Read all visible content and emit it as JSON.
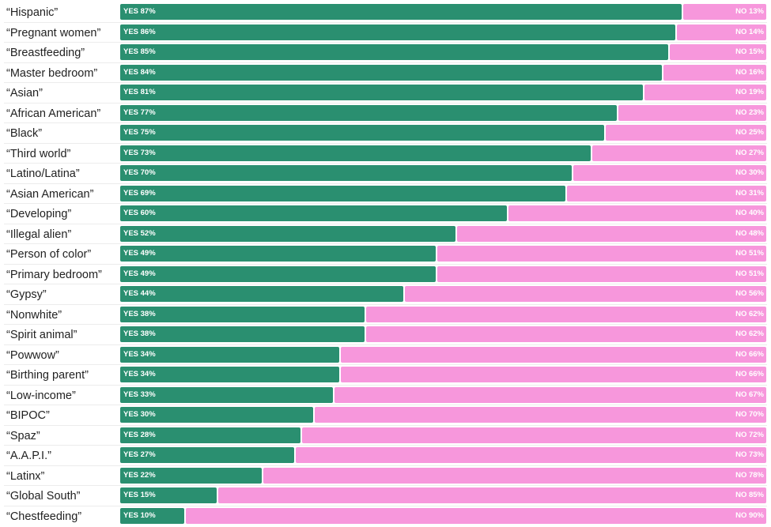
{
  "chart_data": {
    "type": "bar",
    "orientation": "horizontal",
    "stacked": true,
    "title": "",
    "xlabel": "",
    "ylabel": "",
    "xlim": [
      0,
      100
    ],
    "grid": false,
    "legend": "none",
    "yes_prefix": "YES",
    "no_prefix": "NO",
    "colors": {
      "yes": "#2a8f70",
      "no": "#f797dc"
    },
    "categories": [
      "“Hispanic”",
      "“Pregnant women”",
      "“Breastfeeding”",
      "“Master bedroom”",
      "“Asian”",
      "“African American”",
      "“Black”",
      "“Third world”",
      "“Latino/Latina”",
      "“Asian American”",
      "“Developing”",
      "“Illegal alien”",
      "“Person of color”",
      "“Primary bedroom”",
      "“Gypsy”",
      "“Nonwhite”",
      "“Spirit animal”",
      "“Powwow”",
      "“Birthing parent”",
      "“Low-income”",
      "“BIPOC”",
      "“Spaz”",
      "“A.A.P.I.”",
      "“Latinx”",
      "“Global South”",
      "“Chestfeeding”"
    ],
    "series": [
      {
        "name": "YES",
        "values": [
          87,
          86,
          85,
          84,
          81,
          77,
          75,
          73,
          70,
          69,
          60,
          52,
          49,
          49,
          44,
          38,
          38,
          34,
          34,
          33,
          30,
          28,
          27,
          22,
          15,
          10
        ]
      },
      {
        "name": "NO",
        "values": [
          13,
          14,
          15,
          16,
          19,
          23,
          25,
          27,
          30,
          31,
          40,
          48,
          51,
          51,
          56,
          62,
          62,
          66,
          66,
          67,
          70,
          72,
          73,
          78,
          85,
          90
        ]
      }
    ]
  }
}
